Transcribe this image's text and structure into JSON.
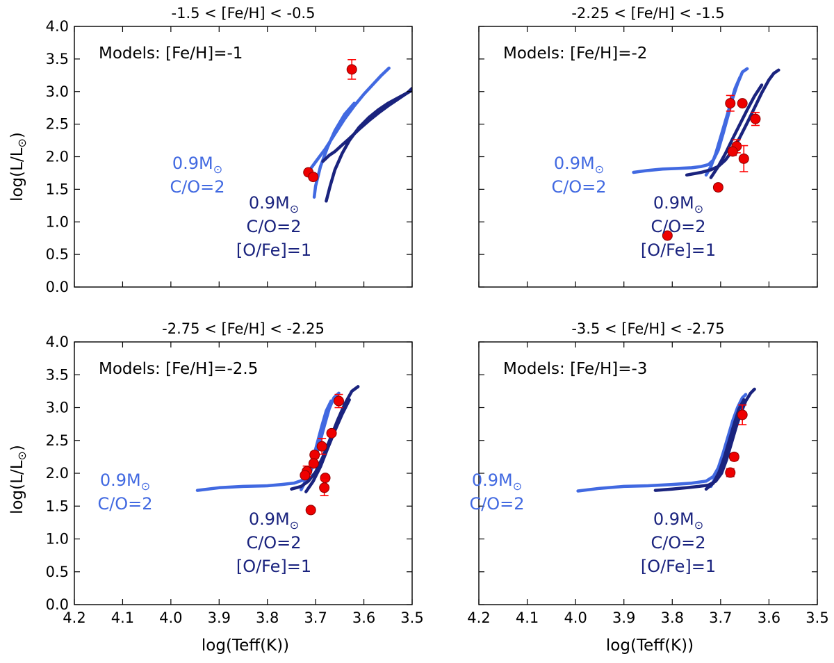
{
  "figure": {
    "ylabel": "log(L/L",
    "ylabel_sub": "⊙",
    "ylabel_end": ")",
    "xlabel": "log(Teff(K))"
  },
  "colors": {
    "model_light": "#4169E1",
    "model_dark": "#1a237e",
    "star_fill": "#ee0000",
    "star_edge": "#8b0000",
    "errorbar": "#ff0000"
  },
  "chart_data": [
    {
      "type": "scatter",
      "title": "-1.5 < [Fe/H] < -0.5",
      "annotation": "Models: [Fe/H]=-1",
      "xlim": [
        4.2,
        3.5
      ],
      "ylim": [
        0.0,
        4.0
      ],
      "xticks": [
        "4.2",
        "4.1",
        "4.0",
        "3.9",
        "3.8",
        "3.7",
        "3.6",
        "3.5"
      ],
      "yticks": [
        "0.0",
        "0.5",
        "1.0",
        "1.5",
        "2.0",
        "2.5",
        "3.0",
        "3.5",
        "4.0"
      ],
      "show_xtick_labels": false,
      "show_ytick_labels": true,
      "model_labels": {
        "light": {
          "line1": "0.9M",
          "sym": "⊙",
          "line2": "C/O=2"
        },
        "dark": {
          "line1": "0.9M",
          "sym": "⊙",
          "line2": "C/O=2",
          "line3": "[O/Fe]=1"
        }
      },
      "series": [
        {
          "group": "light",
          "x": [
            3.718,
            3.712,
            3.7,
            3.68,
            3.66,
            3.64,
            3.62,
            3.6,
            3.58,
            3.565,
            3.548
          ],
          "y": [
            1.72,
            1.8,
            1.92,
            2.12,
            2.35,
            2.58,
            2.78,
            2.96,
            3.12,
            3.24,
            3.36
          ]
        },
        {
          "group": "light",
          "x": [
            3.703,
            3.7,
            3.69,
            3.675,
            3.66,
            3.64,
            3.62
          ],
          "y": [
            1.38,
            1.55,
            1.85,
            2.15,
            2.4,
            2.65,
            2.82
          ]
        },
        {
          "group": "dark",
          "x": [
            3.678,
            3.67,
            3.66,
            3.645,
            3.63,
            3.61,
            3.59,
            3.57,
            3.55,
            3.53,
            3.51,
            3.5
          ],
          "y": [
            1.32,
            1.55,
            1.8,
            2.05,
            2.25,
            2.45,
            2.6,
            2.72,
            2.82,
            2.9,
            2.98,
            3.02
          ]
        },
        {
          "group": "dark",
          "x": [
            3.685,
            3.672,
            3.66,
            3.645,
            3.63,
            3.61,
            3.59,
            3.57,
            3.55,
            3.53,
            3.51,
            3.5
          ],
          "y": [
            1.93,
            2.02,
            2.08,
            2.18,
            2.28,
            2.42,
            2.55,
            2.67,
            2.78,
            2.88,
            2.98,
            3.05
          ]
        }
      ],
      "stars": {
        "x": [
          3.625,
          3.715,
          3.705
        ],
        "y": [
          3.34,
          1.76,
          1.69
        ],
        "yerr": [
          0.15,
          0.03,
          0.03
        ]
      }
    },
    {
      "type": "scatter",
      "title": "-2.25 < [Fe/H] < -1.5",
      "annotation": "Models: [Fe/H]=-2",
      "xlim": [
        4.2,
        3.5
      ],
      "ylim": [
        0.0,
        4.0
      ],
      "xticks": [
        "4.2",
        "4.1",
        "4.0",
        "3.9",
        "3.8",
        "3.7",
        "3.6",
        "3.5"
      ],
      "yticks": [
        "0.0",
        "0.5",
        "1.0",
        "1.5",
        "2.0",
        "2.5",
        "3.0",
        "3.5",
        "4.0"
      ],
      "show_xtick_labels": false,
      "show_ytick_labels": false,
      "model_labels": {
        "light": {
          "line1": "0.9M",
          "sym": "⊙",
          "line2": "C/O=2"
        },
        "dark": {
          "line1": "0.9M",
          "sym": "⊙",
          "line2": "C/O=2",
          "line3": "[O/Fe]=1"
        }
      },
      "series": [
        {
          "group": "light",
          "x": [
            3.88,
            3.85,
            3.82,
            3.79,
            3.76,
            3.74,
            3.725,
            3.715,
            3.705,
            3.695,
            3.685,
            3.675,
            3.665,
            3.655,
            3.645
          ],
          "y": [
            1.76,
            1.79,
            1.81,
            1.82,
            1.83,
            1.85,
            1.88,
            1.95,
            2.1,
            2.35,
            2.62,
            2.9,
            3.12,
            3.3,
            3.35
          ]
        },
        {
          "group": "light",
          "x": [
            3.73,
            3.72,
            3.71,
            3.7,
            3.69,
            3.68,
            3.67,
            3.66
          ],
          "y": [
            1.72,
            1.85,
            2.05,
            2.3,
            2.55,
            2.8,
            3.05,
            3.22
          ]
        },
        {
          "group": "dark",
          "x": [
            3.77,
            3.74,
            3.72,
            3.705,
            3.69,
            3.675,
            3.66,
            3.645,
            3.63,
            3.615,
            3.6,
            3.59,
            3.58
          ],
          "y": [
            1.72,
            1.76,
            1.8,
            1.85,
            1.95,
            2.1,
            2.3,
            2.52,
            2.75,
            2.98,
            3.18,
            3.28,
            3.33
          ]
        },
        {
          "group": "dark",
          "x": [
            3.72,
            3.705,
            3.69,
            3.675,
            3.66,
            3.645,
            3.63,
            3.615
          ],
          "y": [
            1.68,
            1.85,
            2.05,
            2.28,
            2.5,
            2.72,
            2.93,
            3.1
          ]
        }
      ],
      "stars": {
        "x": [
          3.68,
          3.655,
          3.628,
          3.667,
          3.675,
          3.652,
          3.705,
          3.81
        ],
        "y": [
          2.82,
          2.82,
          2.58,
          2.16,
          2.08,
          1.97,
          1.53,
          0.79
        ],
        "yerr": [
          0.12,
          0.03,
          0.1,
          0.1,
          0.06,
          0.2,
          0.03,
          0.03
        ]
      }
    },
    {
      "type": "scatter",
      "title": "-2.75 < [Fe/H] < -2.25",
      "annotation": "Models: [Fe/H]=-2.5",
      "xlim": [
        4.2,
        3.5
      ],
      "ylim": [
        0.0,
        4.0
      ],
      "xticks": [
        "4.2",
        "4.1",
        "4.0",
        "3.9",
        "3.8",
        "3.7",
        "3.6",
        "3.5"
      ],
      "yticks": [
        "0.0",
        "0.5",
        "1.0",
        "1.5",
        "2.0",
        "2.5",
        "3.0",
        "3.5",
        "4.0"
      ],
      "show_xtick_labels": true,
      "show_ytick_labels": true,
      "model_labels": {
        "light": {
          "line1": "0.9M",
          "sym": "⊙",
          "line2": "C/O=2"
        },
        "dark": {
          "line1": "0.9M",
          "sym": "⊙",
          "line2": "C/O=2",
          "line3": "[O/Fe]=1"
        }
      },
      "series": [
        {
          "group": "light",
          "x": [
            3.945,
            3.9,
            3.85,
            3.8,
            3.77,
            3.745,
            3.725,
            3.712,
            3.702,
            3.692,
            3.682,
            3.672,
            3.662,
            3.652
          ],
          "y": [
            1.74,
            1.78,
            1.8,
            1.81,
            1.83,
            1.85,
            1.9,
            2.0,
            2.18,
            2.45,
            2.72,
            2.98,
            3.15,
            3.22
          ]
        },
        {
          "group": "light",
          "x": [
            3.73,
            3.72,
            3.708,
            3.698,
            3.688,
            3.678,
            3.668
          ],
          "y": [
            1.75,
            1.9,
            2.15,
            2.42,
            2.7,
            2.95,
            3.1
          ]
        },
        {
          "group": "dark",
          "x": [
            3.75,
            3.73,
            3.715,
            3.7,
            3.685,
            3.67,
            3.655,
            3.64,
            3.625,
            3.612
          ],
          "y": [
            1.76,
            1.8,
            1.88,
            2.02,
            2.25,
            2.52,
            2.8,
            3.05,
            3.25,
            3.32
          ]
        },
        {
          "group": "dark",
          "x": [
            3.72,
            3.705,
            3.69,
            3.675,
            3.66,
            3.645,
            3.63
          ],
          "y": [
            1.72,
            1.88,
            2.1,
            2.38,
            2.65,
            2.9,
            3.12
          ]
        }
      ],
      "stars": {
        "x": [
          3.652,
          3.667,
          3.687,
          3.702,
          3.704,
          3.718,
          3.722,
          3.68,
          3.682,
          3.71
        ],
        "y": [
          3.1,
          2.61,
          2.41,
          2.28,
          2.15,
          2.03,
          1.97,
          1.93,
          1.78,
          1.44
        ],
        "yerr": [
          0.1,
          0.03,
          0.12,
          0.05,
          0.03,
          0.08,
          0.04,
          0.03,
          0.12,
          0.03
        ]
      }
    },
    {
      "type": "scatter",
      "title": "-3.5 < [Fe/H] < -2.75",
      "annotation": "Models: [Fe/H]=-3",
      "xlim": [
        4.2,
        3.5
      ],
      "ylim": [
        0.0,
        4.0
      ],
      "xticks": [
        "4.2",
        "4.1",
        "4.0",
        "3.9",
        "3.8",
        "3.7",
        "3.6",
        "3.5"
      ],
      "yticks": [
        "0.0",
        "0.5",
        "1.0",
        "1.5",
        "2.0",
        "2.5",
        "3.0",
        "3.5",
        "4.0"
      ],
      "show_xtick_labels": true,
      "show_ytick_labels": false,
      "model_labels": {
        "light": {
          "line1": "0.9M",
          "sym": "⊙",
          "line2": "C/O=2"
        },
        "dark": {
          "line1": "0.9M",
          "sym": "⊙",
          "line2": "C/O=2",
          "line3": "[O/Fe]=1"
        }
      },
      "series": [
        {
          "group": "light",
          "x": [
            3.995,
            3.95,
            3.9,
            3.85,
            3.8,
            3.76,
            3.73,
            3.715,
            3.705,
            3.695,
            3.685,
            3.675,
            3.665,
            3.655,
            3.648
          ],
          "y": [
            1.73,
            1.77,
            1.8,
            1.81,
            1.83,
            1.85,
            1.88,
            1.95,
            2.08,
            2.3,
            2.55,
            2.8,
            3.0,
            3.15,
            3.2
          ]
        },
        {
          "group": "light",
          "x": [
            3.72,
            3.71,
            3.7,
            3.69,
            3.68,
            3.67,
            3.66
          ],
          "y": [
            1.8,
            1.95,
            2.15,
            2.4,
            2.65,
            2.88,
            3.05
          ]
        },
        {
          "group": "dark",
          "x": [
            3.835,
            3.8,
            3.77,
            3.745,
            3.725,
            3.71,
            3.698,
            3.688,
            3.678,
            3.668,
            3.658,
            3.648,
            3.638,
            3.63
          ],
          "y": [
            1.74,
            1.76,
            1.78,
            1.8,
            1.82,
            1.88,
            2.0,
            2.2,
            2.45,
            2.7,
            2.92,
            3.1,
            3.22,
            3.28
          ]
        },
        {
          "group": "dark",
          "x": [
            3.73,
            3.715,
            3.703,
            3.692,
            3.682,
            3.672,
            3.662,
            3.652
          ],
          "y": [
            1.76,
            1.85,
            2.02,
            2.25,
            2.5,
            2.75,
            2.98,
            3.12
          ]
        }
      ],
      "stars": {
        "x": [
          3.655,
          3.672,
          3.68
        ],
        "y": [
          2.89,
          2.25,
          2.01
        ],
        "yerr": [
          0.15,
          0.05,
          0.06
        ]
      }
    }
  ]
}
